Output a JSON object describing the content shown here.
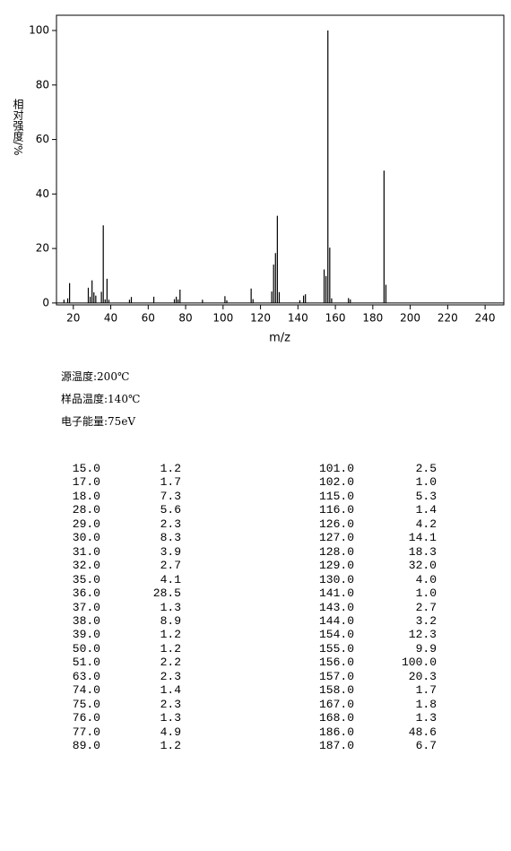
{
  "chart_data": {
    "type": "stem",
    "x_label": "m/z",
    "y_label": "相对强度/%",
    "x": [
      15,
      17,
      18,
      28,
      29,
      30,
      31,
      32,
      35,
      36,
      37,
      38,
      39,
      50,
      51,
      63,
      74,
      75,
      76,
      77,
      89,
      101,
      102,
      115,
      116,
      126,
      127,
      128,
      129,
      130,
      141,
      143,
      144,
      154,
      155,
      156,
      157,
      158,
      167,
      168,
      186,
      187
    ],
    "values": [
      1.2,
      1.7,
      7.3,
      5.6,
      2.3,
      8.3,
      3.9,
      2.7,
      4.1,
      28.5,
      1.3,
      8.9,
      1.2,
      1.2,
      2.2,
      2.3,
      1.4,
      2.3,
      1.3,
      4.9,
      1.2,
      2.5,
      1.0,
      5.3,
      1.4,
      4.2,
      14.1,
      18.3,
      32.0,
      4.0,
      1.0,
      2.7,
      3.2,
      12.3,
      9.9,
      100.0,
      20.3,
      1.7,
      1.8,
      1.3,
      48.6,
      6.7
    ],
    "color": "#000000",
    "xlim": [
      11,
      250
    ],
    "ylim": [
      -0.7,
      105.6
    ],
    "xticks": [
      20,
      40,
      60,
      80,
      100,
      120,
      140,
      160,
      180,
      200,
      220,
      240
    ],
    "yticks": [
      0,
      20,
      40,
      60,
      80,
      100
    ]
  },
  "info": [
    "源温度:200℃",
    "样品温度:140℃",
    "电子能量:75eV"
  ],
  "table": {
    "rows": [
      [
        "15.0",
        "1.2",
        "101.0",
        "2.5"
      ],
      [
        "17.0",
        "1.7",
        "102.0",
        "1.0"
      ],
      [
        "18.0",
        "7.3",
        "115.0",
        "5.3"
      ],
      [
        "28.0",
        "5.6",
        "116.0",
        "1.4"
      ],
      [
        "29.0",
        "2.3",
        "126.0",
        "4.2"
      ],
      [
        "30.0",
        "8.3",
        "127.0",
        "14.1"
      ],
      [
        "31.0",
        "3.9",
        "128.0",
        "18.3"
      ],
      [
        "32.0",
        "2.7",
        "129.0",
        "32.0"
      ],
      [
        "35.0",
        "4.1",
        "130.0",
        "4.0"
      ],
      [
        "36.0",
        "28.5",
        "141.0",
        "1.0"
      ],
      [
        "37.0",
        "1.3",
        "143.0",
        "2.7"
      ],
      [
        "38.0",
        "8.9",
        "144.0",
        "3.2"
      ],
      [
        "39.0",
        "1.2",
        "154.0",
        "12.3"
      ],
      [
        "50.0",
        "1.2",
        "155.0",
        "9.9"
      ],
      [
        "51.0",
        "2.2",
        "156.0",
        "100.0"
      ],
      [
        "63.0",
        "2.3",
        "157.0",
        "20.3"
      ],
      [
        "74.0",
        "1.4",
        "158.0",
        "1.7"
      ],
      [
        "75.0",
        "2.3",
        "167.0",
        "1.8"
      ],
      [
        "76.0",
        "1.3",
        "168.0",
        "1.3"
      ],
      [
        "77.0",
        "4.9",
        "186.0",
        "48.6"
      ],
      [
        "89.0",
        "1.2",
        "187.0",
        "6.7"
      ]
    ]
  }
}
